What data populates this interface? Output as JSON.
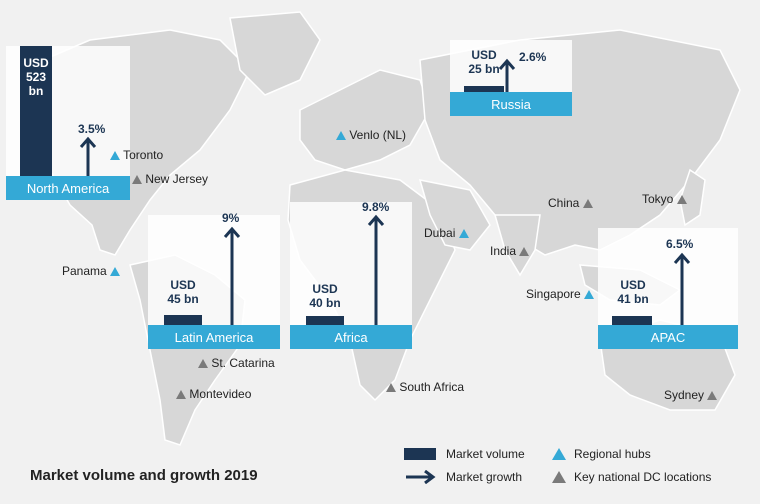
{
  "title": "Market volume and growth 2019",
  "colors": {
    "market_volume": "#1c3553",
    "regional_hub": "#34a9d6",
    "national_dc": "#7a7a7a",
    "region_band": "#34a9d6"
  },
  "regions": [
    {
      "name": "North America",
      "volume_line1": "USD",
      "volume_line2": "523",
      "volume_line3": "bn",
      "volume_bn": 523,
      "growth": "3.5%"
    },
    {
      "name": "Russia",
      "volume_line1": "USD",
      "volume_line2": "25 bn",
      "volume_bn": 25,
      "growth": "2.6%"
    },
    {
      "name": "Latin America",
      "volume_line1": "USD",
      "volume_line2": "45 bn",
      "volume_bn": 45,
      "growth": "9%"
    },
    {
      "name": "Africa",
      "volume_line1": "USD",
      "volume_line2": "40 bn",
      "volume_bn": 40,
      "growth": "9.8%"
    },
    {
      "name": "APAC",
      "volume_line1": "USD",
      "volume_line2": "41 bn",
      "volume_bn": 41,
      "growth": "6.5%"
    }
  ],
  "locations": [
    {
      "name": "Toronto",
      "type": "regional-hub"
    },
    {
      "name": "New Jersey",
      "type": "national-dc"
    },
    {
      "name": "Venlo (NL)",
      "type": "regional-hub"
    },
    {
      "name": "China",
      "type": "national-dc"
    },
    {
      "name": "Tokyo",
      "type": "national-dc"
    },
    {
      "name": "Dubai",
      "type": "regional-hub"
    },
    {
      "name": "India",
      "type": "national-dc"
    },
    {
      "name": "Panama",
      "type": "regional-hub"
    },
    {
      "name": "Singapore",
      "type": "regional-hub"
    },
    {
      "name": "St. Catarina",
      "type": "national-dc"
    },
    {
      "name": "Montevideo",
      "type": "national-dc"
    },
    {
      "name": "South Africa",
      "type": "national-dc"
    },
    {
      "name": "Sydney",
      "type": "national-dc"
    }
  ],
  "legend": {
    "market_volume": "Market volume",
    "market_growth": "Market growth",
    "regional_hubs": "Regional hubs",
    "national_dc": "Key national DC locations"
  }
}
